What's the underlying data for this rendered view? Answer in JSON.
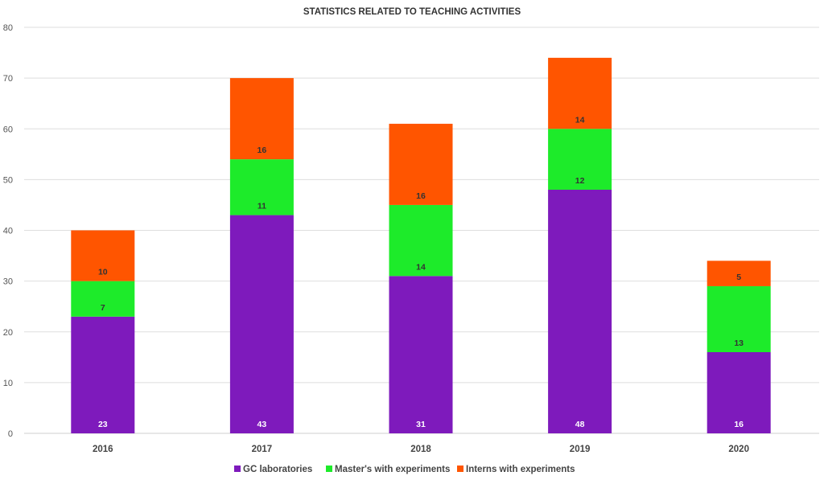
{
  "chart_data": {
    "type": "bar",
    "stacked": true,
    "title": "STATISTICS RELATED TO TEACHING ACTIVITIES",
    "xlabel": "",
    "ylabel": "",
    "ylim": [
      0,
      80
    ],
    "yticks": [
      0,
      10,
      20,
      30,
      40,
      50,
      60,
      70,
      80
    ],
    "grid": true,
    "legend_position": "bottom",
    "categories": [
      "2016",
      "2017",
      "2018",
      "2019",
      "2020"
    ],
    "series": [
      {
        "name": "GC laboratories",
        "color": "#7E1ABC",
        "label_color": "#FFFFFF",
        "values": [
          23,
          43,
          31,
          48,
          16
        ]
      },
      {
        "name": "Master's with experiments",
        "color": "#1DEB2A",
        "label_color": "#333333",
        "values": [
          7,
          11,
          14,
          12,
          13
        ]
      },
      {
        "name": "Interns with experiments",
        "color": "#FF5500",
        "label_color": "#333333",
        "values": [
          10,
          16,
          16,
          14,
          5
        ]
      }
    ]
  }
}
